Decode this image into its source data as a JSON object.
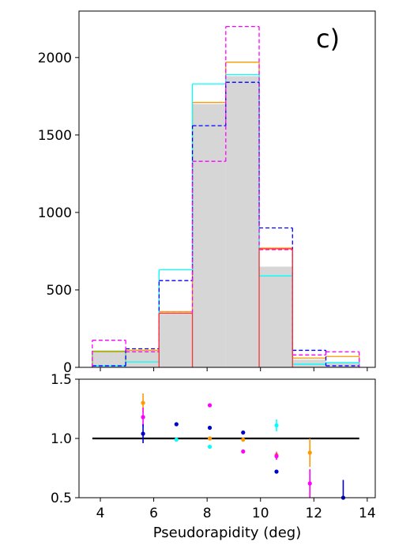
{
  "chart_data": [
    {
      "type": "histogram",
      "panel_label": "c)",
      "xlim": [
        3.2,
        14.3
      ],
      "ylim": [
        0,
        2300
      ],
      "yticks": [
        0,
        500,
        1000,
        1500,
        2000
      ],
      "ytick_labels": [
        "0",
        "500",
        "1000",
        "1500",
        "2000"
      ],
      "bin_edges": [
        3.7,
        4.95,
        6.2,
        7.45,
        8.7,
        9.95,
        11.2,
        12.45,
        13.7
      ],
      "series": [
        {
          "style": "filled",
          "color": "#d6d6d6",
          "values": [
            100,
            110,
            355,
            1700,
            1880,
            650,
            50,
            35
          ]
        },
        {
          "style": "solid",
          "color": "#ff9900",
          "values": [
            100,
            110,
            360,
            1710,
            1970,
            770,
            60,
            70
          ]
        },
        {
          "style": "solid",
          "color": "#66cc55",
          "values": [
            105,
            0,
            0,
            0,
            0,
            0,
            0,
            0
          ]
        },
        {
          "style": "solid",
          "color": "#00ffff",
          "values": [
            10,
            35,
            630,
            1830,
            1890,
            590,
            20,
            30
          ]
        },
        {
          "style": "dashed",
          "color": "#0000ff",
          "values": [
            10,
            120,
            560,
            1560,
            1840,
            900,
            110,
            10
          ]
        },
        {
          "style": "dashed",
          "color": "#ff00ff",
          "values": [
            175,
            100,
            350,
            1330,
            2200,
            760,
            80,
            100
          ]
        },
        {
          "style": "solid",
          "color": "#ff3333",
          "values": [
            0,
            0,
            350,
            0,
            0,
            765,
            0,
            0
          ]
        }
      ]
    },
    {
      "type": "scatter",
      "xlim": [
        3.2,
        14.3
      ],
      "ylim": [
        0.5,
        1.5
      ],
      "xticks": [
        4,
        6,
        8,
        10,
        12,
        14
      ],
      "xtick_labels": [
        "4",
        "6",
        "8",
        "10",
        "12",
        "14"
      ],
      "yticks": [
        0.5,
        1.0,
        1.5
      ],
      "ytick_labels": [
        "0.5",
        "1.0",
        "1.5"
      ],
      "xlabel": "Pseudorapidity (deg)",
      "reference_line": {
        "y": 1.0,
        "x": [
          3.7,
          13.7
        ],
        "color": "#000000"
      },
      "series": [
        {
          "color": "#ff9900",
          "points": [
            {
              "x": 5.6,
              "y": 1.3,
              "err": 0.08
            },
            {
              "x": 8.1,
              "y": 1.0,
              "err": 0.015
            },
            {
              "x": 9.35,
              "y": 0.99,
              "err": 0.015
            },
            {
              "x": 10.6,
              "y": 0.86,
              "err": 0.03
            },
            {
              "x": 11.85,
              "y": 0.88,
              "err": 0.12
            }
          ]
        },
        {
          "color": "#ff00ff",
          "points": [
            {
              "x": 5.6,
              "y": 1.18,
              "err": 0.08
            },
            {
              "x": 8.1,
              "y": 1.28,
              "err": 0.01
            },
            {
              "x": 9.35,
              "y": 0.89,
              "err": 0.01
            },
            {
              "x": 10.6,
              "y": 0.85,
              "err": 0.03
            },
            {
              "x": 11.85,
              "y": 0.62,
              "err": 0.12
            }
          ]
        },
        {
          "color": "#0000cc",
          "points": [
            {
              "x": 5.6,
              "y": 1.04,
              "err": 0.08
            },
            {
              "x": 6.85,
              "y": 1.12,
              "err": 0.01
            },
            {
              "x": 8.1,
              "y": 1.09,
              "err": 0.01
            },
            {
              "x": 9.35,
              "y": 1.05,
              "err": 0.01
            },
            {
              "x": 10.6,
              "y": 0.72,
              "err": 0.01
            },
            {
              "x": 13.1,
              "y": 0.5,
              "err": 0.15
            }
          ]
        },
        {
          "color": "#00ffff",
          "points": [
            {
              "x": 6.85,
              "y": 0.99,
              "err": 0.01
            },
            {
              "x": 8.1,
              "y": 0.93,
              "err": 0.01
            },
            {
              "x": 10.6,
              "y": 1.11,
              "err": 0.05
            }
          ]
        }
      ]
    }
  ]
}
